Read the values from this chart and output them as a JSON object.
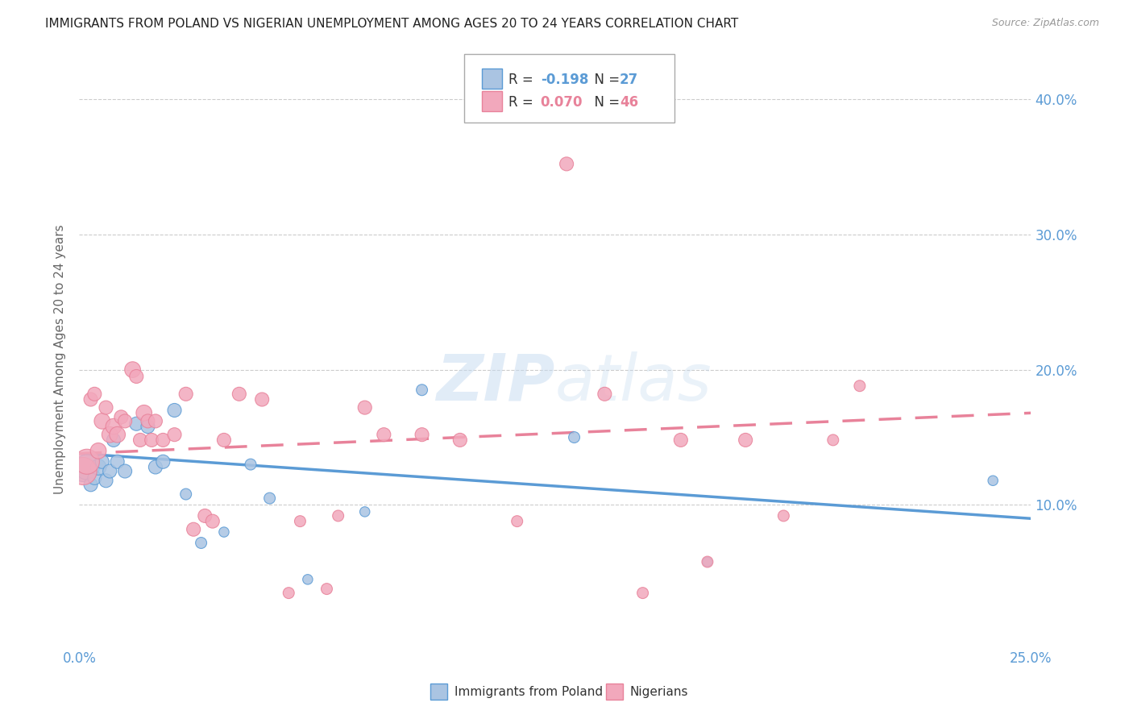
{
  "title": "IMMIGRANTS FROM POLAND VS NIGERIAN UNEMPLOYMENT AMONG AGES 20 TO 24 YEARS CORRELATION CHART",
  "source": "Source: ZipAtlas.com",
  "ylabel": "Unemployment Among Ages 20 to 24 years",
  "bottom_legend_blue": "Immigrants from Poland",
  "bottom_legend_pink": "Nigerians",
  "blue_color": "#aac4e2",
  "pink_color": "#f2a8bc",
  "blue_line_color": "#5b9bd5",
  "pink_line_color": "#e8829a",
  "title_color": "#333333",
  "axis_label_color": "#5b9bd5",
  "background_color": "#ffffff",
  "grid_color": "#cccccc",
  "watermark_zip": "ZIP",
  "watermark_atlas": "atlas",
  "xlim": [
    0.0,
    0.25
  ],
  "ylim": [
    -0.005,
    0.42
  ],
  "ytick_values": [
    0.1,
    0.2,
    0.3,
    0.4
  ],
  "ytick_labels": [
    "10.0%",
    "20.0%",
    "30.0%",
    "40.0%"
  ],
  "blue_trend_x": [
    0.0,
    0.25
  ],
  "blue_trend_y": [
    0.138,
    0.09
  ],
  "pink_trend_x": [
    0.0,
    0.25
  ],
  "pink_trend_y": [
    0.138,
    0.168
  ],
  "blue_scatter_x": [
    0.001,
    0.002,
    0.003,
    0.004,
    0.005,
    0.006,
    0.007,
    0.008,
    0.009,
    0.01,
    0.012,
    0.015,
    0.018,
    0.02,
    0.022,
    0.025,
    0.028,
    0.032,
    0.038,
    0.045,
    0.05,
    0.06,
    0.075,
    0.09,
    0.13,
    0.165,
    0.24
  ],
  "blue_scatter_y": [
    0.125,
    0.128,
    0.115,
    0.12,
    0.128,
    0.132,
    0.118,
    0.125,
    0.148,
    0.132,
    0.125,
    0.16,
    0.158,
    0.128,
    0.132,
    0.17,
    0.108,
    0.072,
    0.08,
    0.13,
    0.105,
    0.045,
    0.095,
    0.185,
    0.15,
    0.058,
    0.118
  ],
  "blue_scatter_size": [
    350,
    500,
    150,
    150,
    200,
    150,
    150,
    150,
    150,
    150,
    150,
    150,
    150,
    150,
    150,
    150,
    100,
    100,
    80,
    100,
    100,
    80,
    80,
    100,
    100,
    70,
    80
  ],
  "pink_scatter_x": [
    0.001,
    0.002,
    0.003,
    0.004,
    0.005,
    0.006,
    0.007,
    0.008,
    0.009,
    0.01,
    0.011,
    0.012,
    0.014,
    0.015,
    0.016,
    0.017,
    0.018,
    0.019,
    0.02,
    0.022,
    0.025,
    0.028,
    0.03,
    0.033,
    0.035,
    0.038,
    0.042,
    0.048,
    0.055,
    0.058,
    0.065,
    0.068,
    0.075,
    0.08,
    0.09,
    0.1,
    0.115,
    0.128,
    0.138,
    0.148,
    0.158,
    0.165,
    0.175,
    0.185,
    0.198,
    0.205
  ],
  "pink_scatter_y": [
    0.125,
    0.132,
    0.178,
    0.182,
    0.14,
    0.162,
    0.172,
    0.152,
    0.158,
    0.152,
    0.165,
    0.162,
    0.2,
    0.195,
    0.148,
    0.168,
    0.162,
    0.148,
    0.162,
    0.148,
    0.152,
    0.182,
    0.082,
    0.092,
    0.088,
    0.148,
    0.182,
    0.178,
    0.035,
    0.088,
    0.038,
    0.092,
    0.172,
    0.152,
    0.152,
    0.148,
    0.088,
    0.352,
    0.182,
    0.035,
    0.148,
    0.058,
    0.148,
    0.092,
    0.148,
    0.188
  ],
  "pink_scatter_size": [
    600,
    500,
    150,
    150,
    200,
    200,
    150,
    200,
    200,
    200,
    150,
    150,
    200,
    150,
    150,
    200,
    150,
    150,
    150,
    150,
    150,
    150,
    150,
    150,
    150,
    150,
    150,
    150,
    100,
    100,
    100,
    100,
    150,
    150,
    150,
    150,
    100,
    150,
    150,
    100,
    150,
    100,
    150,
    100,
    100,
    100
  ]
}
